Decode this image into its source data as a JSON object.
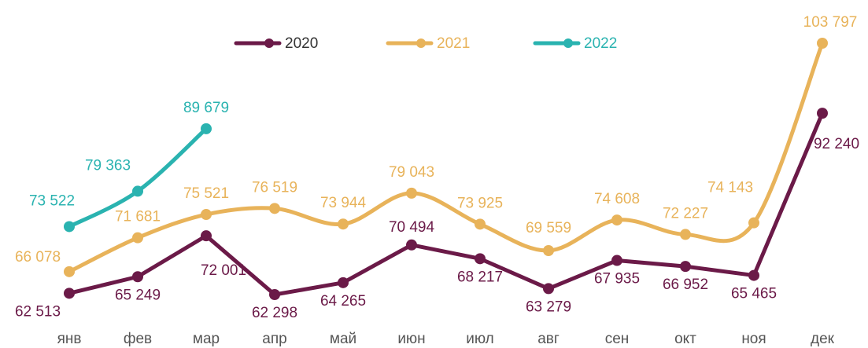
{
  "chart_data": {
    "type": "line",
    "categories": [
      "янв",
      "фев",
      "мар",
      "апр",
      "май",
      "июн",
      "июл",
      "авг",
      "сен",
      "окт",
      "ноя",
      "дек"
    ],
    "series": [
      {
        "name": "2020",
        "color": "#6b1a48",
        "smooth": false,
        "values": [
          62513,
          65249,
          72001,
          62298,
          64265,
          70494,
          68217,
          63279,
          67935,
          66952,
          65465,
          92240
        ],
        "value_labels": [
          "62 513",
          "65 249",
          "72 001",
          "62 298",
          "64 265",
          "70 494",
          "68 217",
          "63 279",
          "67 935",
          "66 952",
          "65 465",
          "92 240"
        ]
      },
      {
        "name": "2021",
        "color": "#e8b35a",
        "smooth": true,
        "values": [
          66078,
          71681,
          75521,
          76519,
          73944,
          79043,
          73925,
          69559,
          74608,
          72227,
          74143,
          103797
        ],
        "value_labels": [
          "66 078",
          "71 681",
          "75 521",
          "76 519",
          "73 944",
          "79 043",
          "73 925",
          "69 559",
          "74 608",
          "72 227",
          "74 143",
          "103 797"
        ]
      },
      {
        "name": "2022",
        "color": "#2ab3b0",
        "smooth": true,
        "values": [
          73522,
          79363,
          89679,
          null,
          null,
          null,
          null,
          null,
          null,
          null,
          null,
          null
        ],
        "value_labels": [
          "73 522",
          "79 363",
          "89 679",
          null,
          null,
          null,
          null,
          null,
          null,
          null,
          null,
          null
        ]
      }
    ],
    "legend": "top"
  }
}
